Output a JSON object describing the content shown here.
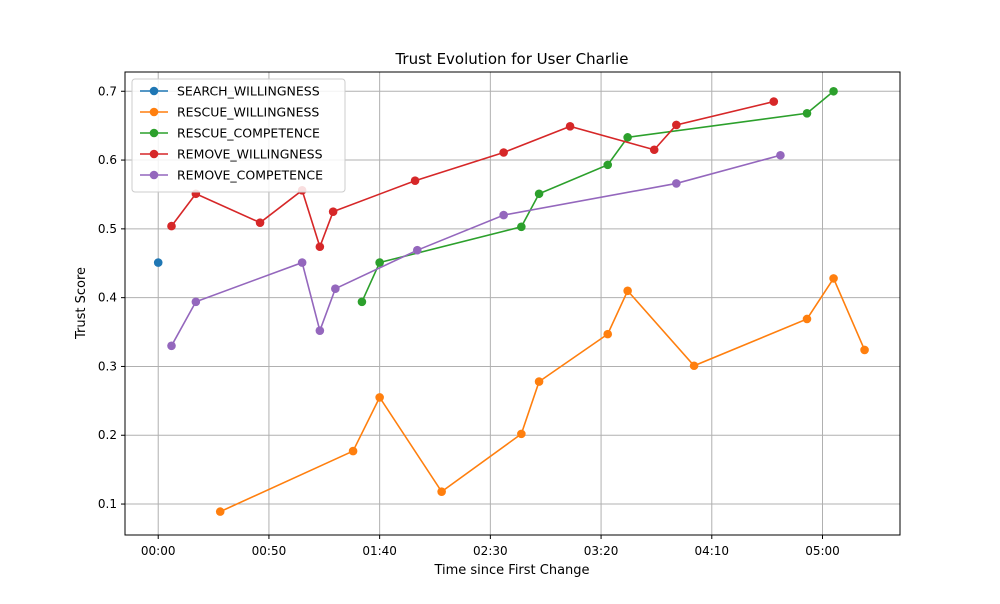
{
  "chart_data": {
    "type": "line",
    "title": "Trust Evolution for User Charlie",
    "xlabel": "Time since First Change",
    "ylabel": "Trust Score",
    "x_unit": "minutes",
    "xlim": [
      -15,
      335
    ],
    "ylim": [
      0.055,
      0.728
    ],
    "x_ticks": [
      {
        "value": 0,
        "label": "00:00"
      },
      {
        "value": 50,
        "label": "00:50"
      },
      {
        "value": 100,
        "label": "01:40"
      },
      {
        "value": 150,
        "label": "02:30"
      },
      {
        "value": 200,
        "label": "03:20"
      },
      {
        "value": 250,
        "label": "04:10"
      },
      {
        "value": 300,
        "label": "05:00"
      }
    ],
    "y_ticks": [
      {
        "value": 0.1,
        "label": "0.1"
      },
      {
        "value": 0.2,
        "label": "0.2"
      },
      {
        "value": 0.3,
        "label": "0.3"
      },
      {
        "value": 0.4,
        "label": "0.4"
      },
      {
        "value": 0.5,
        "label": "0.5"
      },
      {
        "value": 0.6,
        "label": "0.6"
      },
      {
        "value": 0.7,
        "label": "0.7"
      }
    ],
    "grid": true,
    "legend_position": "top-left",
    "series": [
      {
        "name": "SEARCH_WILLINGNESS",
        "color": "#1f77b4",
        "x": [
          0
        ],
        "y": [
          0.451
        ]
      },
      {
        "name": "RESCUE_WILLINGNESS",
        "color": "#ff7f0e",
        "x": [
          28,
          88,
          100,
          128,
          164,
          172,
          203,
          212,
          242,
          293,
          305,
          319
        ],
        "y": [
          0.089,
          0.177,
          0.255,
          0.118,
          0.202,
          0.278,
          0.347,
          0.41,
          0.301,
          0.369,
          0.428,
          0.324
        ]
      },
      {
        "name": "RESCUE_COMPETENCE",
        "color": "#2ca02c",
        "x": [
          92,
          100,
          164,
          172,
          203,
          212,
          293,
          305
        ],
        "y": [
          0.394,
          0.451,
          0.503,
          0.551,
          0.593,
          0.633,
          0.668,
          0.7
        ]
      },
      {
        "name": "REMOVE_WILLINGNESS",
        "color": "#d62728",
        "x": [
          6,
          17,
          46,
          65,
          73,
          79,
          116,
          156,
          186,
          224,
          234,
          278
        ],
        "y": [
          0.504,
          0.551,
          0.509,
          0.556,
          0.474,
          0.525,
          0.57,
          0.611,
          0.649,
          0.615,
          0.651,
          0.685
        ]
      },
      {
        "name": "REMOVE_COMPETENCE",
        "color": "#9467bd",
        "x": [
          6,
          17,
          65,
          73,
          80,
          117,
          156,
          234,
          281
        ],
        "y": [
          0.33,
          0.394,
          0.451,
          0.352,
          0.413,
          0.469,
          0.52,
          0.566,
          0.607
        ]
      }
    ]
  }
}
